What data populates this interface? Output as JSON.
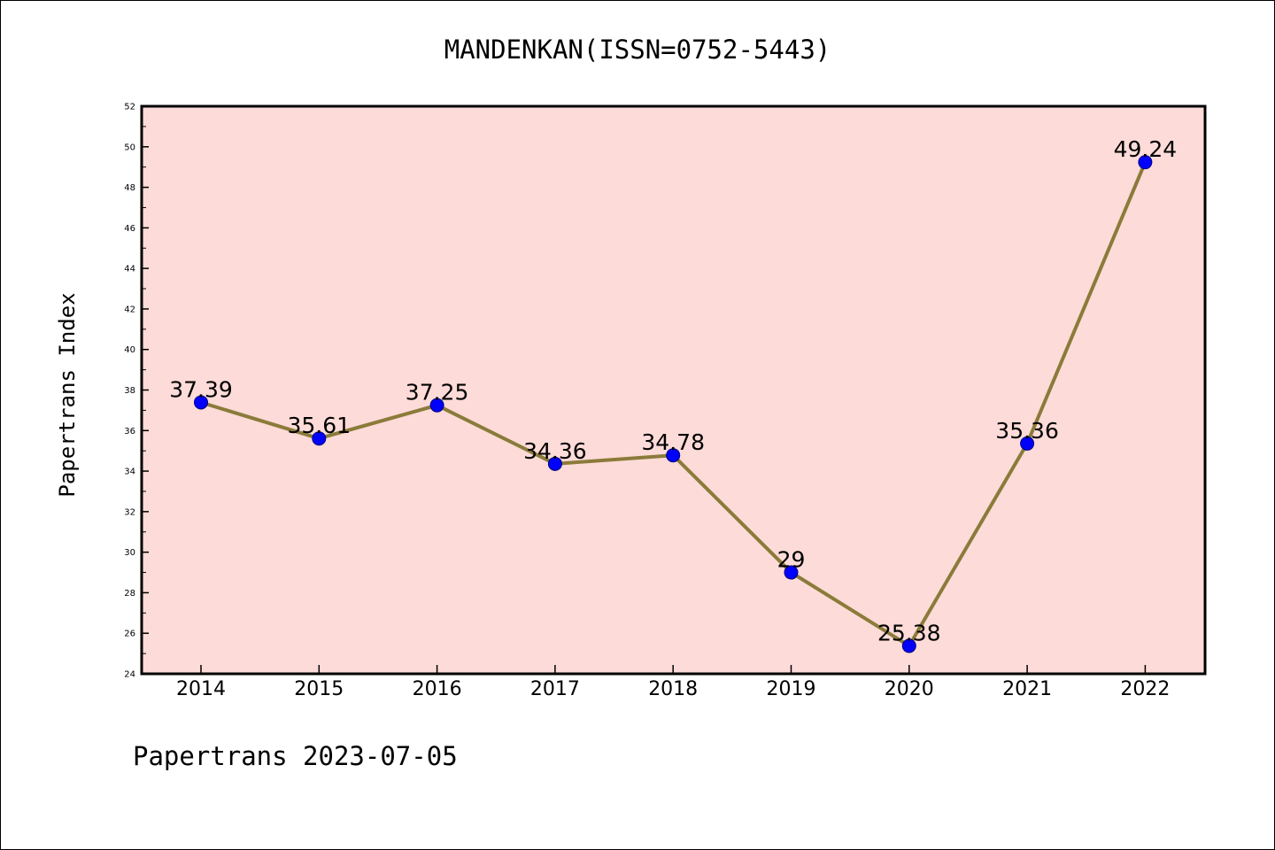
{
  "chart_data": {
    "type": "line",
    "title": "MANDENKAN(ISSN=0752-5443)",
    "ylabel": "Papertrans Index",
    "xlabel": "",
    "footer": "Papertrans 2023-07-05",
    "categories": [
      "2014",
      "2015",
      "2016",
      "2017",
      "2018",
      "2019",
      "2020",
      "2021",
      "2022"
    ],
    "values": [
      37.39,
      35.61,
      37.25,
      34.36,
      34.78,
      29,
      25.38,
      35.36,
      49.24
    ],
    "data_labels": [
      "37.39",
      "35.61",
      "37.25",
      "34.36",
      "34.78",
      "29",
      "25.38",
      "35.36",
      "49.24"
    ],
    "ylim": [
      24,
      52
    ],
    "yticks": [
      24,
      26,
      28,
      30,
      32,
      34,
      36,
      38,
      40,
      42,
      44,
      46,
      48,
      50,
      52
    ],
    "grid": false,
    "colors": {
      "plot_background": "#fddbd8",
      "line": "#8b7b3a",
      "marker": "#0000ff"
    }
  }
}
